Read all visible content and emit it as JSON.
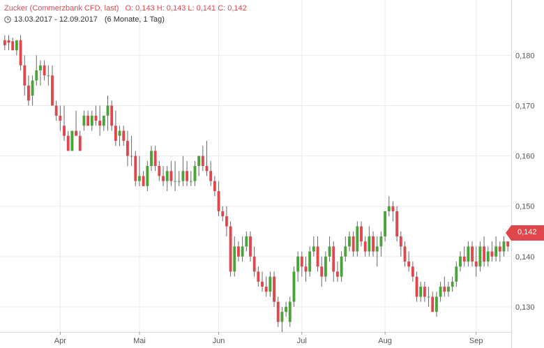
{
  "header": {
    "title": "Zucker (Commerzbank CFD, last)",
    "ohlc": "O: 0,143  H: 0,143  L: 0,141  C: 0,142",
    "range": "13.03.2017 - 12.09.2017",
    "interval": "(6 Monate, 1 Tag)"
  },
  "price_tag": "0,142",
  "colors": {
    "up": "#4aa339",
    "down": "#e0474c",
    "grid": "#ebebeb",
    "axis_text": "#555555",
    "border": "#d9d9d9"
  },
  "icons": {
    "range_icon": "clock-icon"
  },
  "chart_data": {
    "type": "candlestick",
    "ylim": [
      0.125,
      0.191
    ],
    "yticks": [
      {
        "value": 0.13,
        "label": "0,130"
      },
      {
        "value": 0.14,
        "label": "0,140"
      },
      {
        "value": 0.15,
        "label": "0,150"
      },
      {
        "value": 0.16,
        "label": "0,160"
      },
      {
        "value": 0.17,
        "label": "0,170"
      },
      {
        "value": 0.18,
        "label": "0,180"
      }
    ],
    "xlabels": [
      {
        "index": 14,
        "label": "Apr"
      },
      {
        "index": 34,
        "label": "Mai"
      },
      {
        "index": 54,
        "label": "Jun"
      },
      {
        "index": 75,
        "label": "Jul"
      },
      {
        "index": 96,
        "label": "Aug"
      },
      {
        "index": 119,
        "label": "Sep"
      }
    ],
    "grid": true,
    "last": 0.142,
    "candles": [
      [
        0.183,
        0.184,
        0.181,
        0.182
      ],
      [
        0.183,
        0.184,
        0.181,
        0.1825
      ],
      [
        0.1828,
        0.1835,
        0.181,
        0.181
      ],
      [
        0.181,
        0.183,
        0.18,
        0.183
      ],
      [
        0.183,
        0.184,
        0.177,
        0.178
      ],
      [
        0.178,
        0.18,
        0.172,
        0.174
      ],
      [
        0.174,
        0.176,
        0.17,
        0.171
      ],
      [
        0.172,
        0.176,
        0.17,
        0.175
      ],
      [
        0.175,
        0.18,
        0.174,
        0.177
      ],
      [
        0.177,
        0.179,
        0.174,
        0.178
      ],
      [
        0.178,
        0.179,
        0.175,
        0.176
      ],
      [
        0.176,
        0.178,
        0.174,
        0.176
      ],
      [
        0.176,
        0.178,
        0.17,
        0.17
      ],
      [
        0.17,
        0.171,
        0.167,
        0.168
      ],
      [
        0.168,
        0.17,
        0.165,
        0.167
      ],
      [
        0.166,
        0.17,
        0.163,
        0.164
      ],
      [
        0.164,
        0.165,
        0.161,
        0.161
      ],
      [
        0.161,
        0.165,
        0.161,
        0.165
      ],
      [
        0.165,
        0.169,
        0.164,
        0.164
      ],
      [
        0.164,
        0.165,
        0.161,
        0.161
      ],
      [
        0.166,
        0.169,
        0.165,
        0.168
      ],
      [
        0.168,
        0.169,
        0.166,
        0.166
      ],
      [
        0.166,
        0.169,
        0.165,
        0.168
      ],
      [
        0.168,
        0.17,
        0.166,
        0.167
      ],
      [
        0.167,
        0.17,
        0.164,
        0.166
      ],
      [
        0.166,
        0.168,
        0.165,
        0.168
      ],
      [
        0.168,
        0.172,
        0.165,
        0.17
      ],
      [
        0.17,
        0.171,
        0.165,
        0.166
      ],
      [
        0.166,
        0.169,
        0.162,
        0.163
      ],
      [
        0.164,
        0.166,
        0.162,
        0.165
      ],
      [
        0.165,
        0.166,
        0.162,
        0.163
      ],
      [
        0.163,
        0.165,
        0.158,
        0.16
      ],
      [
        0.16,
        0.164,
        0.158,
        0.16
      ],
      [
        0.16,
        0.161,
        0.154,
        0.155
      ],
      [
        0.155,
        0.16,
        0.154,
        0.156
      ],
      [
        0.156,
        0.157,
        0.154,
        0.154
      ],
      [
        0.154,
        0.159,
        0.153,
        0.158
      ],
      [
        0.158,
        0.162,
        0.157,
        0.161
      ],
      [
        0.161,
        0.162,
        0.157,
        0.158
      ],
      [
        0.158,
        0.159,
        0.155,
        0.156
      ],
      [
        0.156,
        0.158,
        0.154,
        0.155
      ],
      [
        0.155,
        0.158,
        0.153,
        0.157
      ],
      [
        0.157,
        0.159,
        0.154,
        0.155
      ],
      [
        0.155,
        0.159,
        0.153,
        0.155
      ],
      [
        0.155,
        0.157,
        0.154,
        0.155
      ],
      [
        0.155,
        0.16,
        0.154,
        0.157
      ],
      [
        0.157,
        0.159,
        0.154,
        0.155
      ],
      [
        0.155,
        0.157,
        0.154,
        0.155
      ],
      [
        0.155,
        0.159,
        0.154,
        0.158
      ],
      [
        0.158,
        0.16,
        0.156,
        0.16
      ],
      [
        0.16,
        0.162,
        0.157,
        0.158
      ],
      [
        0.158,
        0.163,
        0.156,
        0.157
      ],
      [
        0.157,
        0.159,
        0.154,
        0.155
      ],
      [
        0.155,
        0.156,
        0.152,
        0.153
      ],
      [
        0.153,
        0.155,
        0.148,
        0.149
      ],
      [
        0.149,
        0.15,
        0.147,
        0.148
      ],
      [
        0.148,
        0.15,
        0.144,
        0.146
      ],
      [
        0.146,
        0.147,
        0.136,
        0.137
      ],
      [
        0.137,
        0.144,
        0.136,
        0.142
      ],
      [
        0.142,
        0.143,
        0.139,
        0.14
      ],
      [
        0.14,
        0.144,
        0.139,
        0.142
      ],
      [
        0.142,
        0.145,
        0.141,
        0.144
      ],
      [
        0.144,
        0.145,
        0.139,
        0.14
      ],
      [
        0.14,
        0.142,
        0.136,
        0.137
      ],
      [
        0.137,
        0.138,
        0.134,
        0.135
      ],
      [
        0.135,
        0.137,
        0.133,
        0.134
      ],
      [
        0.134,
        0.136,
        0.132,
        0.133
      ],
      [
        0.133,
        0.137,
        0.132,
        0.136
      ],
      [
        0.136,
        0.137,
        0.13,
        0.131
      ],
      [
        0.131,
        0.132,
        0.126,
        0.127
      ],
      [
        0.127,
        0.13,
        0.125,
        0.129
      ],
      [
        0.129,
        0.131,
        0.128,
        0.13
      ],
      [
        0.127,
        0.132,
        0.126,
        0.131
      ],
      [
        0.131,
        0.138,
        0.13,
        0.137
      ],
      [
        0.137,
        0.141,
        0.135,
        0.14
      ],
      [
        0.14,
        0.141,
        0.136,
        0.138
      ],
      [
        0.138,
        0.14,
        0.135,
        0.137
      ],
      [
        0.137,
        0.142,
        0.136,
        0.141
      ],
      [
        0.141,
        0.144,
        0.14,
        0.142
      ],
      [
        0.142,
        0.144,
        0.137,
        0.138
      ],
      [
        0.138,
        0.14,
        0.134,
        0.136
      ],
      [
        0.136,
        0.141,
        0.135,
        0.14
      ],
      [
        0.14,
        0.144,
        0.139,
        0.142
      ],
      [
        0.142,
        0.143,
        0.135,
        0.137
      ],
      [
        0.137,
        0.139,
        0.135,
        0.136
      ],
      [
        0.136,
        0.141,
        0.135,
        0.14
      ],
      [
        0.14,
        0.144,
        0.139,
        0.142
      ],
      [
        0.142,
        0.145,
        0.141,
        0.144
      ],
      [
        0.144,
        0.145,
        0.14,
        0.141
      ],
      [
        0.141,
        0.147,
        0.14,
        0.146
      ],
      [
        0.146,
        0.147,
        0.142,
        0.143
      ],
      [
        0.143,
        0.144,
        0.14,
        0.141
      ],
      [
        0.141,
        0.146,
        0.14,
        0.144
      ],
      [
        0.144,
        0.145,
        0.14,
        0.141
      ],
      [
        0.141,
        0.144,
        0.138,
        0.142
      ],
      [
        0.142,
        0.145,
        0.14,
        0.144
      ],
      [
        0.144,
        0.149,
        0.143,
        0.149
      ],
      [
        0.149,
        0.152,
        0.148,
        0.15
      ],
      [
        0.15,
        0.151,
        0.147,
        0.149
      ],
      [
        0.149,
        0.15,
        0.143,
        0.144
      ],
      [
        0.144,
        0.145,
        0.14,
        0.142
      ],
      [
        0.142,
        0.143,
        0.138,
        0.139
      ],
      [
        0.139,
        0.141,
        0.137,
        0.138
      ],
      [
        0.138,
        0.139,
        0.135,
        0.136
      ],
      [
        0.136,
        0.137,
        0.131,
        0.132
      ],
      [
        0.132,
        0.135,
        0.131,
        0.134
      ],
      [
        0.134,
        0.135,
        0.131,
        0.132
      ],
      [
        0.132,
        0.134,
        0.13,
        0.132
      ],
      [
        0.132,
        0.133,
        0.129,
        0.129
      ],
      [
        0.129,
        0.133,
        0.128,
        0.132
      ],
      [
        0.132,
        0.135,
        0.131,
        0.134
      ],
      [
        0.134,
        0.136,
        0.132,
        0.133
      ],
      [
        0.133,
        0.135,
        0.132,
        0.134
      ],
      [
        0.134,
        0.136,
        0.133,
        0.135
      ],
      [
        0.135,
        0.139,
        0.134,
        0.138
      ],
      [
        0.138,
        0.141,
        0.137,
        0.14
      ],
      [
        0.14,
        0.142,
        0.138,
        0.139
      ],
      [
        0.139,
        0.143,
        0.138,
        0.142
      ],
      [
        0.142,
        0.143,
        0.138,
        0.139
      ],
      [
        0.139,
        0.142,
        0.136,
        0.138
      ],
      [
        0.138,
        0.143,
        0.137,
        0.142
      ],
      [
        0.142,
        0.144,
        0.138,
        0.139
      ],
      [
        0.139,
        0.142,
        0.138,
        0.141
      ],
      [
        0.141,
        0.143,
        0.139,
        0.14
      ],
      [
        0.14,
        0.144,
        0.139,
        0.142
      ],
      [
        0.142,
        0.143,
        0.139,
        0.141
      ],
      [
        0.141,
        0.144,
        0.14,
        0.143
      ],
      [
        0.143,
        0.143,
        0.141,
        0.142
      ]
    ]
  }
}
